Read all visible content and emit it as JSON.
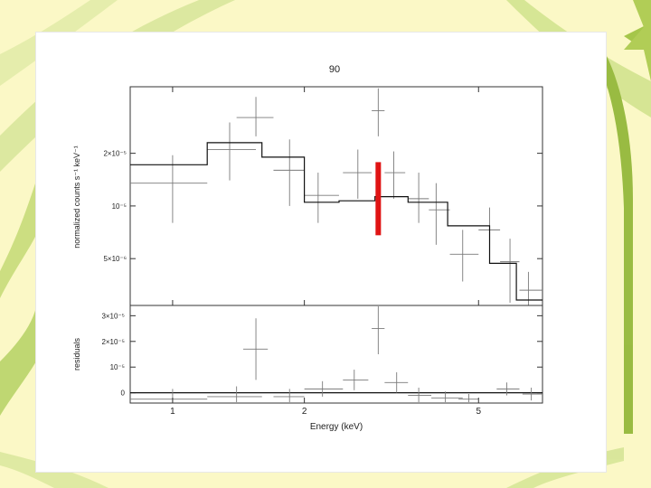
{
  "colors": {
    "background": "#fbf8c6",
    "leaf_light": "#cfe08a",
    "leaf_dark": "#8fb534",
    "model_line": "#111111",
    "data_cross": "#7a7a7a",
    "marker": "#e01414"
  },
  "chart_data": [
    {
      "type": "step-line-with-errorbars",
      "title": "90",
      "xlabel": "Energy (keV)",
      "ylabel": "normalized counts s⁻¹ keV⁻¹",
      "xscale": "log",
      "yscale": "log",
      "xlim": [
        0.8,
        7.0
      ],
      "ylim": [
        2.7e-06,
        4.8e-05
      ],
      "x_ticks": [
        {
          "value": 1,
          "label": "1"
        },
        {
          "value": 2,
          "label": "2"
        },
        {
          "value": 5,
          "label": "5"
        }
      ],
      "y_ticks": [
        {
          "value": 5e-06,
          "label": "5×10⁻⁶"
        },
        {
          "value": 1e-05,
          "label": "10⁻⁵"
        },
        {
          "value": 2e-05,
          "label": "2×10⁻⁵"
        }
      ],
      "data": [
        {
          "x": 1.0,
          "xlo": 0.8,
          "xhi": 1.2,
          "y": 1.35e-05,
          "yerr_lo": 5.5e-06,
          "yerr_hi": 6e-06
        },
        {
          "x": 1.35,
          "xlo": 1.2,
          "xhi": 1.55,
          "y": 2.1e-05,
          "yerr_lo": 7e-06,
          "yerr_hi": 9e-06
        },
        {
          "x": 1.55,
          "xlo": 1.4,
          "xhi": 1.7,
          "y": 3.2e-05,
          "yerr_lo": 7e-06,
          "yerr_hi": 1e-05
        },
        {
          "x": 1.85,
          "xlo": 1.7,
          "xhi": 2.0,
          "y": 1.6e-05,
          "yerr_lo": 6e-06,
          "yerr_hi": 8e-06
        },
        {
          "x": 2.15,
          "xlo": 2.0,
          "xhi": 2.4,
          "y": 1.15e-05,
          "yerr_lo": 3.5e-06,
          "yerr_hi": 4e-06
        },
        {
          "x": 2.65,
          "xlo": 2.45,
          "xhi": 2.85,
          "y": 1.55e-05,
          "yerr_lo": 4.5e-06,
          "yerr_hi": 5.5e-06
        },
        {
          "x": 2.95,
          "xlo": 2.85,
          "xhi": 3.05,
          "y": 3.5e-05,
          "yerr_lo": 1e-05,
          "yerr_hi": 1.2e-05
        },
        {
          "x": 3.2,
          "xlo": 3.05,
          "xhi": 3.4,
          "y": 1.55e-05,
          "yerr_lo": 4.5e-06,
          "yerr_hi": 5e-06
        },
        {
          "x": 3.65,
          "xlo": 3.45,
          "xhi": 3.85,
          "y": 1.1e-05,
          "yerr_lo": 3e-06,
          "yerr_hi": 4.5e-06
        },
        {
          "x": 4.0,
          "xlo": 3.85,
          "xhi": 4.3,
          "y": 9.5e-06,
          "yerr_lo": 3.5e-06,
          "yerr_hi": 4e-06
        },
        {
          "x": 4.6,
          "xlo": 4.3,
          "xhi": 5.0,
          "y": 5.3e-06,
          "yerr_lo": 1.6e-06,
          "yerr_hi": 2e-06
        },
        {
          "x": 5.3,
          "xlo": 5.0,
          "xhi": 5.6,
          "y": 7.3e-06,
          "yerr_lo": 2.5e-06,
          "yerr_hi": 2.5e-06
        },
        {
          "x": 5.9,
          "xlo": 5.6,
          "xhi": 6.2,
          "y": 4.8e-06,
          "yerr_lo": 2e-06,
          "yerr_hi": 1.7e-06
        },
        {
          "x": 6.5,
          "xlo": 6.2,
          "xhi": 7.0,
          "y": 3.3e-06,
          "yerr_lo": 6e-07,
          "yerr_hi": 9e-07
        }
      ],
      "model_steps": [
        {
          "xlo": 0.8,
          "xhi": 1.2,
          "y": 1.72e-05
        },
        {
          "xlo": 1.2,
          "xhi": 1.6,
          "y": 2.3e-05
        },
        {
          "xlo": 1.6,
          "xhi": 2.0,
          "y": 1.9e-05
        },
        {
          "xlo": 2.0,
          "xhi": 2.4,
          "y": 1.05e-05
        },
        {
          "xlo": 2.4,
          "xhi": 2.9,
          "y": 1.07e-05
        },
        {
          "xlo": 2.9,
          "xhi": 3.45,
          "y": 1.13e-05
        },
        {
          "xlo": 3.45,
          "xhi": 4.25,
          "y": 1.05e-05
        },
        {
          "xlo": 4.25,
          "xhi": 5.3,
          "y": 7.7e-06
        },
        {
          "xlo": 5.3,
          "xhi": 6.1,
          "y": 4.7e-06
        },
        {
          "xlo": 6.1,
          "xhi": 7.0,
          "y": 2.9e-06
        }
      ],
      "marker": {
        "x": 2.95,
        "ylo": 6.8e-06,
        "yhi": 1.78e-05
      }
    },
    {
      "type": "residuals",
      "ylabel": "residuals",
      "xscale": "log",
      "xlim": [
        0.8,
        7.0
      ],
      "ylim": [
        -4e-06,
        3.4e-05
      ],
      "y_ticks": [
        {
          "value": 0,
          "label": "0"
        },
        {
          "value": 1e-05,
          "label": "10⁻⁵"
        },
        {
          "value": 2e-05,
          "label": "2×10⁻⁵"
        },
        {
          "value": 3e-05,
          "label": "3×10⁻⁵"
        }
      ],
      "zero_line": 0,
      "data": [
        {
          "x": 1.0,
          "xlo": 0.8,
          "xhi": 1.2,
          "y": -2.5e-06,
          "yerr": 4e-06
        },
        {
          "x": 1.4,
          "xlo": 1.2,
          "xhi": 1.6,
          "y": -1.5e-06,
          "yerr": 4e-06
        },
        {
          "x": 1.55,
          "xlo": 1.45,
          "xhi": 1.65,
          "y": 1.7e-05,
          "yerr": 1.2e-05
        },
        {
          "x": 1.85,
          "xlo": 1.7,
          "xhi": 2.0,
          "y": -1.5e-06,
          "yerr": 3e-06
        },
        {
          "x": 2.2,
          "xlo": 2.0,
          "xhi": 2.45,
          "y": 1.5e-06,
          "yerr": 3e-06
        },
        {
          "x": 2.6,
          "xlo": 2.45,
          "xhi": 2.8,
          "y": 5e-06,
          "yerr": 4e-06
        },
        {
          "x": 2.95,
          "xlo": 2.85,
          "xhi": 3.05,
          "y": 2.5e-05,
          "yerr": 1e-05
        },
        {
          "x": 3.25,
          "xlo": 3.05,
          "xhi": 3.45,
          "y": 4e-06,
          "yerr": 4e-06
        },
        {
          "x": 3.65,
          "xlo": 3.45,
          "xhi": 3.9,
          "y": -1e-06,
          "yerr": 3e-06
        },
        {
          "x": 4.2,
          "xlo": 3.9,
          "xhi": 4.6,
          "y": -2e-06,
          "yerr": 2.5e-06
        },
        {
          "x": 4.75,
          "xlo": 4.5,
          "xhi": 5.0,
          "y": -2.5e-06,
          "yerr": 2e-06
        },
        {
          "x": 5.8,
          "xlo": 5.5,
          "xhi": 6.2,
          "y": 1.5e-06,
          "yerr": 2.5e-06
        },
        {
          "x": 6.6,
          "xlo": 6.3,
          "xhi": 7.0,
          "y": -5e-07,
          "yerr": 2.5e-06
        }
      ]
    }
  ]
}
